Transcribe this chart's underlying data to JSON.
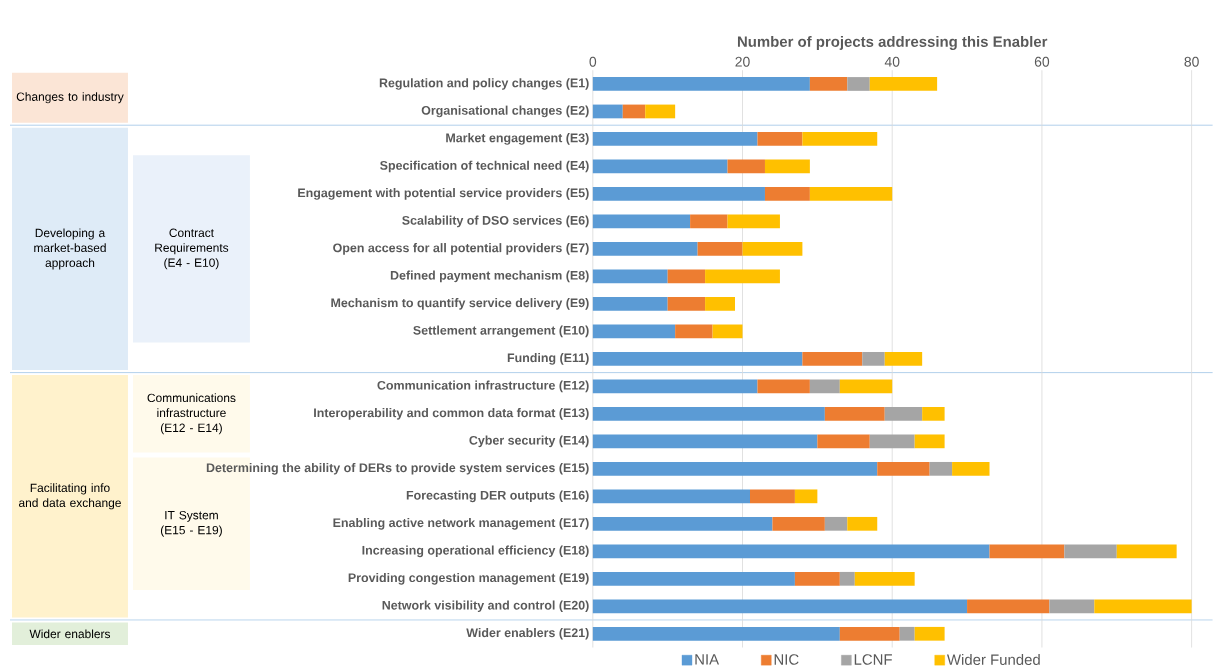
{
  "chart_data": {
    "type": "bar",
    "orientation": "horizontal",
    "stacked": true,
    "xlabel": "Number of projects addressing this Enabler",
    "categories": [
      "Regulation and policy changes (E1)",
      "Organisational changes (E2)",
      "Market engagement (E3)",
      "Specification of technical need (E4)",
      "Engagement with potential service providers (E5)",
      "Scalability of DSO services (E6)",
      "Open access for all potential providers (E7)",
      "Defined payment mechanism (E8)",
      "Mechanism to quantify service delivery (E9)",
      "Settlement arrangement (E10)",
      "Funding (E11)",
      "Communication infrastructure (E12)",
      "Interoperability and common data format (E13)",
      "Cyber security (E14)",
      "Determining the ability of DERs to provide system services (E15)",
      "Forecasting DER outputs (E16)",
      "Enabling active network management (E17)",
      "Increasing operational efficiency (E18)",
      "Providing congestion management (E19)",
      "Network visibility and control (E20)",
      "Wider enablers (E21)"
    ],
    "series": [
      {
        "name": "NIA",
        "color": "#5b9bd5",
        "values": [
          29,
          4,
          22,
          18,
          23,
          13,
          14,
          10,
          10,
          11,
          28,
          22,
          31,
          30,
          38,
          21,
          24,
          53,
          27,
          50,
          33
        ]
      },
      {
        "name": "NIC",
        "color": "#ed7d31",
        "values": [
          5,
          3,
          6,
          5,
          6,
          5,
          6,
          5,
          5,
          5,
          8,
          7,
          8,
          7,
          7,
          6,
          7,
          10,
          6,
          11,
          8
        ]
      },
      {
        "name": "LCNF",
        "color": "#a5a5a5",
        "values": [
          3,
          null,
          null,
          null,
          null,
          null,
          null,
          null,
          null,
          null,
          3,
          4,
          5,
          6,
          3,
          null,
          3,
          7,
          2,
          6,
          2
        ]
      },
      {
        "name": "Wider Funded",
        "color": "#ffc000",
        "values": [
          9,
          4,
          10,
          6,
          11,
          7,
          8,
          10,
          4,
          4,
          5,
          7,
          3,
          4,
          5,
          3,
          4,
          8,
          8,
          13,
          4
        ]
      }
    ],
    "xlim": [
      0,
      80
    ],
    "xticks": [
      0,
      20,
      40,
      60,
      80
    ],
    "grid": "x",
    "legend": "bottom",
    "annotations": [
      "Changes to industry",
      "Developing a market-based approach",
      "Contract Requirements (E4 - E10)",
      "Facilitating info and data exchange",
      "Communications infrastructure (E12 - E14)",
      "IT System (E15 - E19)",
      "Wider enablers"
    ]
  }
}
